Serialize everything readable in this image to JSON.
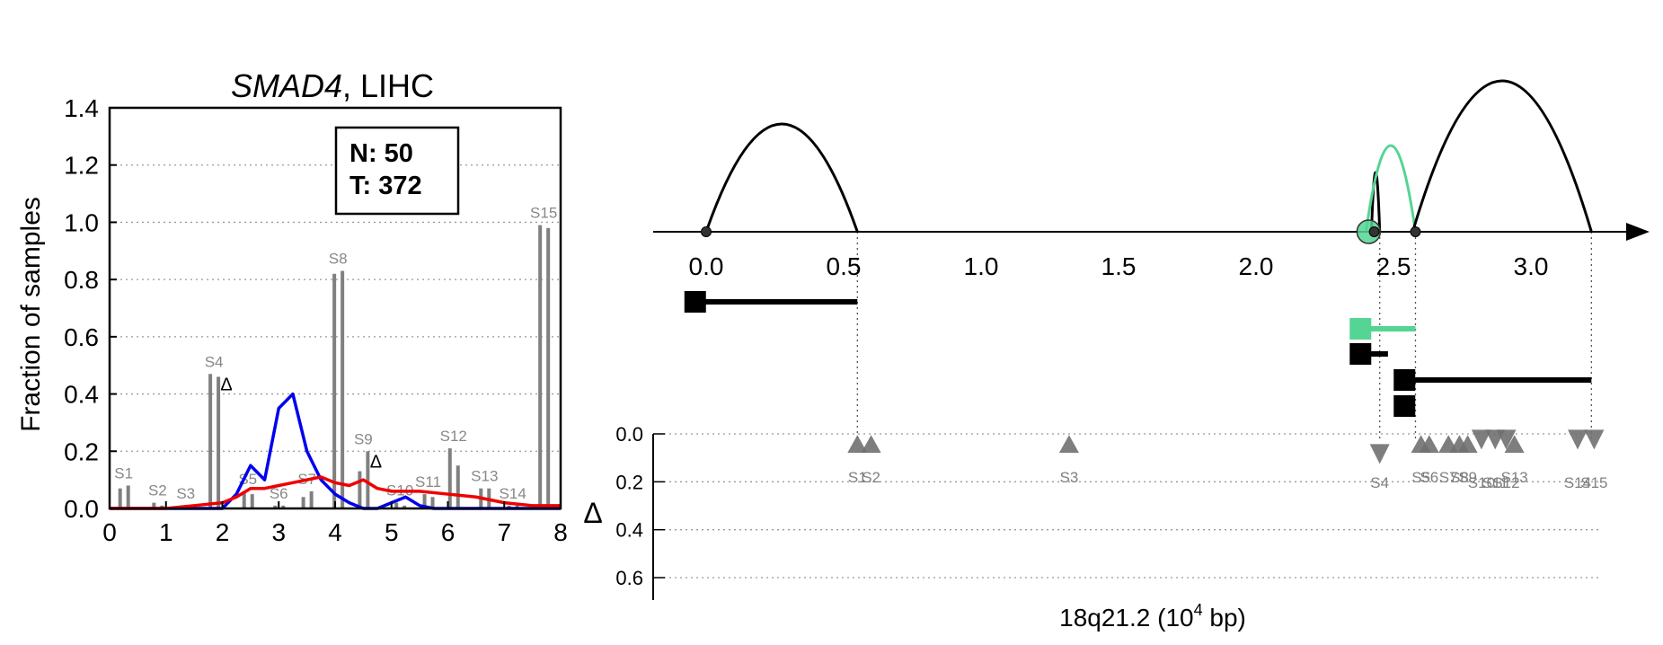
{
  "chart_data": [
    {
      "type": "bar",
      "title_gene": "SMAD4",
      "title_rest": ", LIHC",
      "ylabel": "Fraction of samples",
      "xlim": [
        0,
        8
      ],
      "ylim": [
        0,
        1.4
      ],
      "xticks": [
        "0",
        "1",
        "2",
        "3",
        "4",
        "5",
        "6",
        "7",
        "8"
      ],
      "yticks": [
        "0.0",
        "0.2",
        "0.4",
        "0.6",
        "0.8",
        "1.0",
        "1.2",
        "1.4"
      ],
      "legend_box": {
        "n_label": "N: 50",
        "t_label": "T: 372"
      },
      "colors": {
        "normal_line": "#0000ee",
        "tumor_line": "#ee0000",
        "bars": "#808080",
        "grid": "#999999"
      },
      "bar_pairs": [
        {
          "label": "S1",
          "x": 0.25,
          "normal": 0.07,
          "tumor": 0.08
        },
        {
          "label": "S2",
          "x": 0.85,
          "normal": 0.02,
          "tumor": 0.01
        },
        {
          "label": "S3",
          "x": 1.35,
          "normal": 0.01,
          "tumor": 0.01
        },
        {
          "label": "S4",
          "x": 1.85,
          "normal": 0.47,
          "tumor": 0.46,
          "delta": true
        },
        {
          "label": "S5",
          "x": 2.45,
          "normal": 0.06,
          "tumor": 0.05
        },
        {
          "label": "S6",
          "x": 3.0,
          "normal": 0.01,
          "tumor": 0.01
        },
        {
          "label": "S7",
          "x": 3.5,
          "normal": 0.04,
          "tumor": 0.06
        },
        {
          "label": "S8",
          "x": 4.05,
          "normal": 0.82,
          "tumor": 0.83
        },
        {
          "label": "S9",
          "x": 4.5,
          "normal": 0.13,
          "tumor": 0.2,
          "delta": true
        },
        {
          "label": "S10",
          "x": 5.15,
          "normal": 0.02,
          "tumor": 0.01
        },
        {
          "label": "S11",
          "x": 5.65,
          "normal": 0.05,
          "tumor": 0.04
        },
        {
          "label": "S12",
          "x": 6.1,
          "normal": 0.21,
          "tumor": 0.15
        },
        {
          "label": "S13",
          "x": 6.65,
          "normal": 0.07,
          "tumor": 0.07
        },
        {
          "label": "S14",
          "x": 7.15,
          "normal": 0.01,
          "tumor": 0.01
        },
        {
          "label": "S15",
          "x": 7.7,
          "normal": 0.99,
          "tumor": 0.98
        }
      ],
      "series": [
        {
          "x": [
            0,
            1,
            1.5,
            2,
            2.25,
            2.5,
            2.75,
            3.0,
            3.25,
            3.5,
            3.75,
            4.0,
            4.25,
            4.5,
            4.75,
            5.0,
            5.25,
            5.5,
            5.75,
            6.0,
            8.0
          ],
          "values": [
            0,
            0,
            0,
            0,
            0.05,
            0.15,
            0.1,
            0.35,
            0.4,
            0.2,
            0.1,
            0.05,
            0.02,
            0,
            0,
            0.02,
            0.04,
            0.01,
            0,
            0,
            0
          ]
        },
        {
          "x": [
            0,
            1,
            1.5,
            2,
            2.25,
            2.5,
            2.75,
            3.0,
            3.25,
            3.5,
            3.75,
            4.0,
            4.25,
            4.5,
            4.75,
            5.0,
            5.5,
            6.0,
            6.5,
            7.0,
            7.5,
            8.0
          ],
          "values": [
            0,
            0,
            0.01,
            0.02,
            0.04,
            0.07,
            0.07,
            0.08,
            0.09,
            0.1,
            0.11,
            0.09,
            0.08,
            0.1,
            0.07,
            0.06,
            0.06,
            0.05,
            0.04,
            0.02,
            0.01,
            0.01
          ]
        }
      ]
    },
    {
      "type": "scatter",
      "xlabel_main": "18q21.2 (10",
      "xlabel_sup": "4",
      "xlabel_tail": " bp)",
      "xlim": [
        -0.2,
        3.5
      ],
      "xticks": [
        "0.0",
        "0.5",
        "1.0",
        "1.5",
        "2.0",
        "2.5",
        "3.0"
      ],
      "ylabel": "Δ",
      "ylim": [
        0,
        0.7
      ],
      "yticks": [
        "0.0",
        "0.2",
        "0.4",
        "0.6"
      ],
      "colors": {
        "arc": "#000000",
        "highlight": "#55d494",
        "marker": "#707070"
      },
      "arcs": [
        {
          "start": 0.0,
          "end": 0.55,
          "height": 1.0,
          "highlight": false
        },
        {
          "start": 2.42,
          "end": 2.45,
          "height": 0.55,
          "highlight": false
        },
        {
          "start": 2.4,
          "end": 2.58,
          "height": 0.8,
          "highlight": true
        },
        {
          "start": 2.57,
          "end": 3.22,
          "height": 1.4,
          "highlight": false
        }
      ],
      "junction_dots": [
        0.0,
        2.43,
        2.58
      ],
      "highlight_dot": 2.4,
      "segments": [
        {
          "start": -0.04,
          "end": 0.55,
          "level": 0,
          "highlight": false
        },
        {
          "start": 2.38,
          "end": 2.58,
          "level": 1,
          "highlight": true
        },
        {
          "start": 2.38,
          "end": 2.48,
          "level": 2,
          "highlight": false
        },
        {
          "start": 2.54,
          "end": 3.22,
          "level": 3,
          "highlight": false
        },
        {
          "start": 2.54,
          "end": 2.55,
          "level": 4,
          "highlight": false
        }
      ],
      "guide_lines": [
        0.55,
        2.45,
        2.58,
        3.22
      ],
      "markers": [
        {
          "label": "S1",
          "x": 0.55,
          "delta": 0.05,
          "dir": "up"
        },
        {
          "label": "S2",
          "x": 0.6,
          "delta": 0.05,
          "dir": "up"
        },
        {
          "label": "S3",
          "x": 1.32,
          "delta": 0.05,
          "dir": "up"
        },
        {
          "label": "S4",
          "x": 2.45,
          "delta": 0.08,
          "dir": "down"
        },
        {
          "label": "S5",
          "x": 2.6,
          "delta": 0.05,
          "dir": "up"
        },
        {
          "label": "S6",
          "x": 2.63,
          "delta": 0.05,
          "dir": "up"
        },
        {
          "label": "S7",
          "x": 2.7,
          "delta": 0.05,
          "dir": "up"
        },
        {
          "label": "S8",
          "x": 2.74,
          "delta": 0.05,
          "dir": "up"
        },
        {
          "label": "S9",
          "x": 2.77,
          "delta": 0.05,
          "dir": "up"
        },
        {
          "label": "S10",
          "x": 2.82,
          "delta": 0.02,
          "dir": "down"
        },
        {
          "label": "S11",
          "x": 2.87,
          "delta": 0.02,
          "dir": "down"
        },
        {
          "label": "S12",
          "x": 2.91,
          "delta": 0.02,
          "dir": "down"
        },
        {
          "label": "S13",
          "x": 2.94,
          "delta": 0.05,
          "dir": "up"
        },
        {
          "label": "S14",
          "x": 3.17,
          "delta": 0.02,
          "dir": "down"
        },
        {
          "label": "S15",
          "x": 3.23,
          "delta": 0.02,
          "dir": "down"
        }
      ]
    }
  ]
}
